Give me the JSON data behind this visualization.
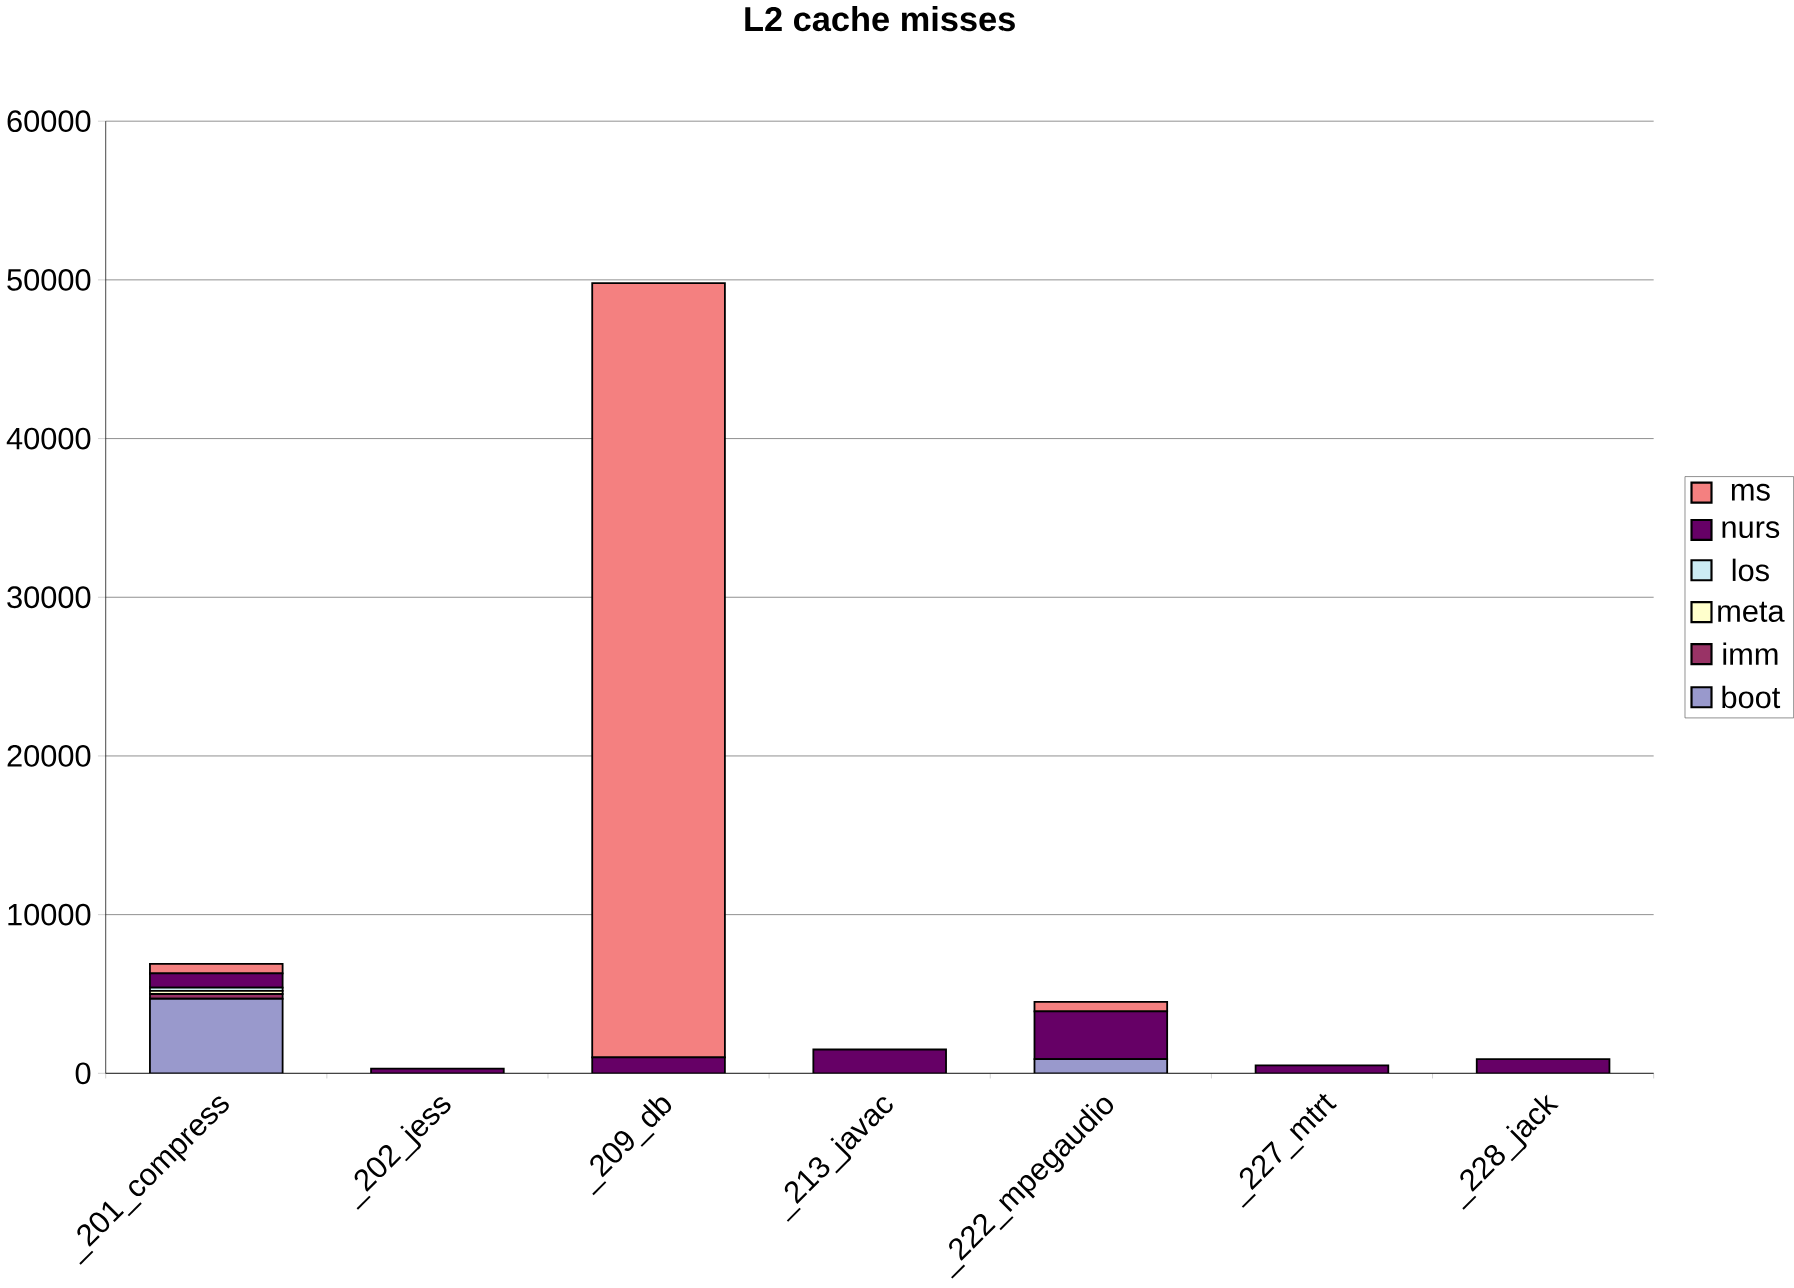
{
  "chart_data": {
    "type": "bar",
    "stacked": true,
    "title": "L2 cache misses",
    "categories": [
      "_201_compress",
      "_202_jess",
      "_209_db",
      "_213_javac",
      "_222_mpegaudio",
      "_227_mtrt",
      "_228_jack"
    ],
    "series": [
      {
        "name": "boot",
        "color": "#9999cc",
        "values": [
          4700,
          0,
          0,
          0,
          900,
          0,
          0
        ]
      },
      {
        "name": "imm",
        "color": "#993366",
        "values": [
          300,
          0,
          0,
          0,
          0,
          0,
          0
        ]
      },
      {
        "name": "meta",
        "color": "#ffffcc",
        "values": [
          200,
          0,
          0,
          0,
          0,
          0,
          0
        ]
      },
      {
        "name": "los",
        "color": "#ccecf4",
        "values": [
          200,
          0,
          0,
          0,
          null,
          0,
          0
        ]
      },
      {
        "name": "nurs",
        "color": "#660066",
        "values": [
          900,
          300,
          1000,
          1500,
          3000,
          500,
          900
        ]
      },
      {
        "name": "ms",
        "color": "#f48080",
        "values": [
          600,
          0,
          48800,
          0,
          600,
          0,
          0
        ]
      }
    ],
    "ylim": [
      0,
      60000
    ],
    "yticks": [
      0,
      10000,
      20000,
      30000,
      40000,
      50000,
      60000
    ],
    "grid": "y",
    "legend": "right"
  }
}
